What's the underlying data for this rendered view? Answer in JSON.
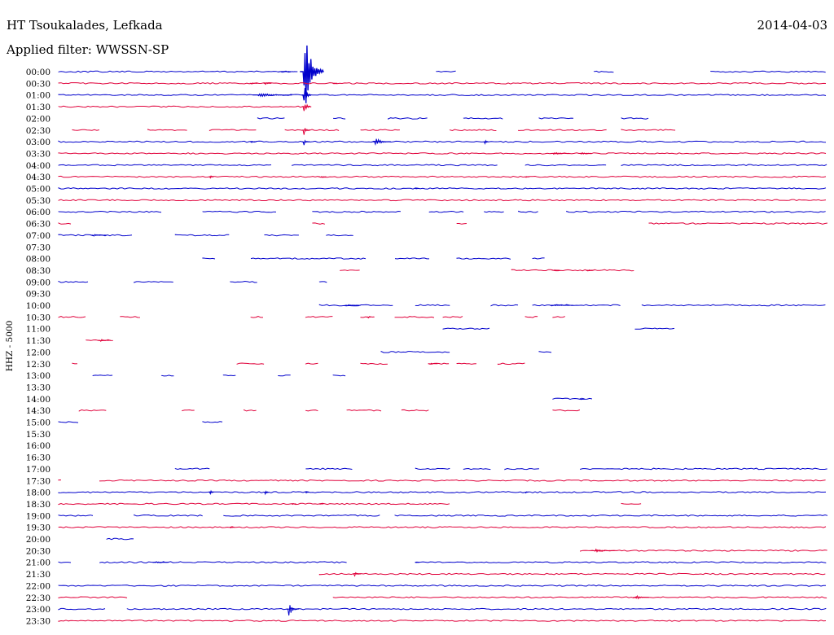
{
  "header": {
    "station": "HT Tsoukalades, Lefkada",
    "filter": "Applied filter: WWSSN-SP",
    "date": "2014-04-03"
  },
  "colors": {
    "even_trace": "#0000cc",
    "odd_trace": "#e0003a"
  },
  "chart_data": {
    "type": "line",
    "title": "HT Tsoukalades, Lefkada",
    "subtitle": "Applied filter: WWSSN-SP",
    "date": "2014-04-03",
    "ylabel": "HHZ - 5000",
    "x_range_minutes": [
      0,
      30
    ],
    "rows": [
      {
        "label": "00:00",
        "segments": [
          [
            0,
            17
          ],
          [
            27.5,
            29
          ],
          [
            39,
            40.5
          ],
          [
            47.5,
            56
          ]
        ],
        "events": [
          {
            "at": 16.2,
            "amp": 2,
            "width": 1.2
          },
          {
            "at": 17.8,
            "amp": 100,
            "width": 1.5
          }
        ]
      },
      {
        "label": "00:30",
        "segments": [
          [
            0,
            56
          ]
        ],
        "events": [
          {
            "at": 14,
            "amp": 3,
            "width": 0.5
          },
          {
            "at": 15,
            "amp": 3,
            "width": 0.5
          },
          {
            "at": 20,
            "amp": 2,
            "width": 0.3
          }
        ]
      },
      {
        "label": "01:00",
        "segments": [
          [
            0,
            56
          ]
        ],
        "events": [
          {
            "at": 14.5,
            "amp": 5,
            "width": 2.5
          },
          {
            "at": 17.8,
            "amp": 30,
            "width": 0.6
          }
        ]
      },
      {
        "label": "01:30",
        "segments": [
          [
            0,
            18.5
          ]
        ],
        "events": [
          {
            "at": 17.8,
            "amp": 20,
            "width": 0.6
          }
        ]
      },
      {
        "label": "02:00",
        "segments": [
          [
            14.5,
            16.5
          ],
          [
            20,
            21
          ],
          [
            24,
            27
          ],
          [
            29.5,
            32.5
          ],
          [
            35,
            37.5
          ],
          [
            41,
            43
          ]
        ]
      },
      {
        "label": "02:30",
        "segments": [
          [
            1,
            3
          ],
          [
            6.5,
            9.5
          ],
          [
            11,
            14.5
          ],
          [
            16.5,
            20.5
          ],
          [
            22,
            25
          ],
          [
            28.5,
            32
          ],
          [
            33.5,
            40
          ],
          [
            41,
            45
          ]
        ],
        "events": [
          {
            "at": 17.8,
            "amp": 15,
            "width": 0.5
          }
        ]
      },
      {
        "label": "03:00",
        "segments": [
          [
            0,
            56
          ]
        ],
        "events": [
          {
            "at": 14,
            "amp": 3,
            "width": 0.4
          },
          {
            "at": 17.8,
            "amp": 10,
            "width": 0.5
          },
          {
            "at": 23,
            "amp": 9,
            "width": 1.2
          },
          {
            "at": 31,
            "amp": 12,
            "width": 0.3
          }
        ]
      },
      {
        "label": "03:30",
        "segments": [
          [
            0,
            56
          ]
        ],
        "events": [
          {
            "at": 36,
            "amp": 3,
            "width": 1.2
          },
          {
            "at": 38,
            "amp": 3,
            "width": 0.8
          }
        ]
      },
      {
        "label": "04:00",
        "segments": [
          [
            0,
            15.5
          ],
          [
            17,
            32
          ],
          [
            34,
            40
          ],
          [
            41,
            56
          ]
        ]
      },
      {
        "label": "04:30",
        "segments": [
          [
            0,
            56
          ]
        ],
        "events": [
          {
            "at": 11,
            "amp": 5,
            "width": 0.3
          },
          {
            "at": 19,
            "amp": 2,
            "width": 0.5
          },
          {
            "at": 34,
            "amp": 2,
            "width": 0.3
          }
        ]
      },
      {
        "label": "05:00",
        "segments": [
          [
            0,
            56
          ]
        ],
        "events": [
          {
            "at": 26,
            "amp": 2,
            "width": 0.3
          }
        ]
      },
      {
        "label": "05:30",
        "segments": [
          [
            0,
            56
          ]
        ]
      },
      {
        "label": "06:00",
        "segments": [
          [
            0,
            7.5
          ],
          [
            10.5,
            16
          ],
          [
            18.5,
            25
          ],
          [
            27,
            29.5
          ],
          [
            31,
            32.5
          ],
          [
            33.5,
            35
          ],
          [
            37,
            56
          ]
        ]
      },
      {
        "label": "06:30",
        "segments": [
          [
            0,
            1
          ],
          [
            18.5,
            19.5
          ],
          [
            29,
            29.8
          ],
          [
            43,
            56
          ]
        ]
      },
      {
        "label": "07:00",
        "segments": [
          [
            0,
            5.5
          ],
          [
            8.5,
            12.5
          ],
          [
            15,
            17.5
          ],
          [
            19.5,
            21.5
          ]
        ],
        "events": [
          {
            "at": 2.5,
            "amp": 3,
            "width": 1
          }
        ]
      },
      {
        "label": "07:30",
        "segments": []
      },
      {
        "label": "08:00",
        "segments": [
          [
            10.5,
            11.5
          ],
          [
            14,
            22.5
          ],
          [
            24.5,
            27
          ],
          [
            29,
            33
          ],
          [
            34.5,
            35.5
          ]
        ]
      },
      {
        "label": "08:30",
        "segments": [
          [
            20.5,
            22
          ],
          [
            33,
            42
          ]
        ],
        "events": [
          {
            "at": 36,
            "amp": 2,
            "width": 0.5
          },
          {
            "at": 38.5,
            "amp": 2,
            "width": 0.5
          }
        ]
      },
      {
        "label": "09:00",
        "segments": [
          [
            0,
            2.2
          ],
          [
            5.5,
            8.5
          ],
          [
            12.5,
            14.5
          ],
          [
            19,
            19.7
          ]
        ]
      },
      {
        "label": "09:30",
        "segments": []
      },
      {
        "label": "10:00",
        "segments": [
          [
            19,
            24.5
          ],
          [
            26,
            28.5
          ],
          [
            31.5,
            33.5
          ],
          [
            34.5,
            41
          ],
          [
            42.5,
            56
          ]
        ],
        "events": [
          {
            "at": 21,
            "amp": 2,
            "width": 1
          },
          {
            "at": 36,
            "amp": 2,
            "width": 1.5
          }
        ]
      },
      {
        "label": "10:30",
        "segments": [
          [
            0,
            2
          ],
          [
            4.5,
            6
          ],
          [
            14,
            15
          ],
          [
            18,
            20
          ],
          [
            22,
            22.8
          ],
          [
            24.5,
            27.5
          ],
          [
            28,
            29.5
          ],
          [
            34,
            35
          ],
          [
            36,
            37
          ]
        ],
        "events": [
          {
            "at": 22.5,
            "amp": 3,
            "width": 0.5
          }
        ]
      },
      {
        "label": "11:00",
        "segments": [
          [
            28,
            31.5
          ],
          [
            42,
            45
          ]
        ]
      },
      {
        "label": "11:30",
        "segments": [
          [
            2,
            4
          ]
        ],
        "events": [
          {
            "at": 3,
            "amp": 3,
            "width": 0.8
          }
        ]
      },
      {
        "label": "12:00",
        "segments": [
          [
            23.5,
            28.5
          ],
          [
            35,
            36
          ]
        ]
      },
      {
        "label": "12:30",
        "segments": [
          [
            1,
            1.5
          ],
          [
            13,
            15
          ],
          [
            18,
            19
          ],
          [
            22,
            24
          ],
          [
            27,
            28.5
          ],
          [
            29,
            30.5
          ],
          [
            32,
            34
          ]
        ],
        "events": [
          {
            "at": 27,
            "amp": 2,
            "width": 0.6
          }
        ]
      },
      {
        "label": "13:00",
        "segments": [
          [
            2.5,
            4
          ],
          [
            7.5,
            8.5
          ],
          [
            12,
            13
          ],
          [
            16,
            17
          ],
          [
            20,
            21
          ]
        ]
      },
      {
        "label": "13:30",
        "segments": []
      },
      {
        "label": "14:00",
        "segments": [
          [
            36,
            39
          ]
        ],
        "events": [
          {
            "at": 38,
            "amp": 3,
            "width": 0.3
          }
        ]
      },
      {
        "label": "14:30",
        "segments": [
          [
            1.5,
            3.5
          ],
          [
            9,
            10
          ],
          [
            13.5,
            14.5
          ],
          [
            18,
            19
          ],
          [
            21,
            23.5
          ],
          [
            25,
            27
          ],
          [
            36,
            38
          ]
        ]
      },
      {
        "label": "15:00",
        "segments": [
          [
            0,
            1.5
          ],
          [
            10.5,
            12
          ]
        ]
      },
      {
        "label": "15:30",
        "segments": []
      },
      {
        "label": "16:00",
        "segments": []
      },
      {
        "label": "16:30",
        "segments": []
      },
      {
        "label": "17:00",
        "segments": [
          [
            8.5,
            11
          ],
          [
            18,
            21.5
          ],
          [
            26,
            28.5
          ],
          [
            29.5,
            31.5
          ],
          [
            32.5,
            35
          ],
          [
            38,
            56
          ]
        ]
      },
      {
        "label": "17:30",
        "segments": [
          [
            0,
            0.3
          ],
          [
            3,
            56
          ]
        ]
      },
      {
        "label": "18:00",
        "segments": [
          [
            0,
            56
          ]
        ],
        "events": [
          {
            "at": 11,
            "amp": 7,
            "width": 0.3
          },
          {
            "at": 15,
            "amp": 8,
            "width": 0.3
          },
          {
            "at": 18,
            "amp": 3,
            "width": 0.2
          },
          {
            "at": 34,
            "amp": 2,
            "width": 0.2
          }
        ]
      },
      {
        "label": "18:30",
        "segments": [
          [
            0,
            28.5
          ],
          [
            41,
            42.5
          ]
        ],
        "events": [
          {
            "at": 17,
            "amp": 2,
            "width": 0.3
          },
          {
            "at": 19,
            "amp": 2,
            "width": 0.3
          }
        ]
      },
      {
        "label": "19:00",
        "segments": [
          [
            0,
            2.5
          ],
          [
            5.5,
            10.5
          ],
          [
            12,
            23.5
          ],
          [
            24.5,
            56
          ]
        ]
      },
      {
        "label": "19:30",
        "segments": [
          [
            0,
            56
          ]
        ],
        "events": [
          {
            "at": 12.5,
            "amp": 2,
            "width": 0.3
          }
        ]
      },
      {
        "label": "20:00",
        "segments": [
          [
            3.5,
            5.5
          ]
        ]
      },
      {
        "label": "20:30",
        "segments": [
          [
            38,
            56
          ]
        ],
        "events": [
          {
            "at": 39,
            "amp": 4,
            "width": 1.5
          }
        ]
      },
      {
        "label": "21:00",
        "segments": [
          [
            0,
            1
          ],
          [
            3,
            21
          ],
          [
            26,
            56
          ]
        ],
        "events": [
          {
            "at": 7,
            "amp": 2,
            "width": 1
          },
          {
            "at": 26,
            "amp": 2,
            "width": 0.3
          }
        ]
      },
      {
        "label": "21:30",
        "segments": [
          [
            19,
            56
          ]
        ],
        "events": [
          {
            "at": 21.5,
            "amp": 6,
            "width": 0.5
          }
        ]
      },
      {
        "label": "22:00",
        "segments": [
          [
            0,
            56
          ]
        ]
      },
      {
        "label": "22:30",
        "segments": [
          [
            0,
            5
          ],
          [
            20,
            56
          ]
        ],
        "events": [
          {
            "at": 42,
            "amp": 5,
            "width": 1
          }
        ]
      },
      {
        "label": "23:00",
        "segments": [
          [
            0,
            3.5
          ],
          [
            5,
            56
          ]
        ],
        "events": [
          {
            "at": 16.7,
            "amp": 17,
            "width": 0.8
          }
        ]
      },
      {
        "label": "23:30",
        "segments": [
          [
            0,
            56
          ]
        ]
      }
    ]
  }
}
